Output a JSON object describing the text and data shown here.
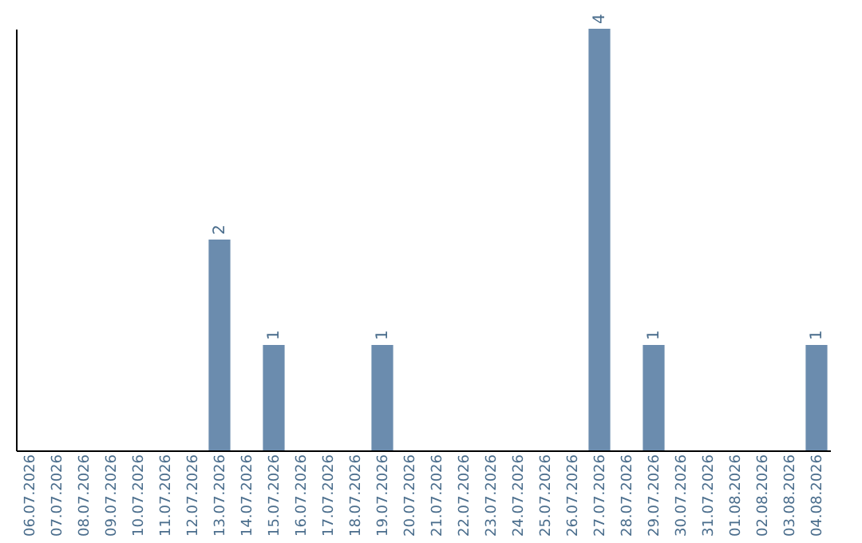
{
  "chart_data": {
    "type": "bar",
    "categories": [
      "06.07.2026",
      "07.07.2026",
      "08.07.2026",
      "09.07.2026",
      "10.07.2026",
      "11.07.2026",
      "12.07.2026",
      "13.07.2026",
      "14.07.2026",
      "15.07.2026",
      "16.07.2026",
      "17.07.2026",
      "18.07.2026",
      "19.07.2026",
      "20.07.2026",
      "21.07.2026",
      "22.07.2026",
      "23.07.2026",
      "24.07.2026",
      "25.07.2026",
      "26.07.2026",
      "27.07.2026",
      "28.07.2026",
      "29.07.2026",
      "30.07.2026",
      "31.07.2026",
      "01.08.2026",
      "02.08.2026",
      "03.08.2026",
      "04.08.2026"
    ],
    "values": [
      0,
      0,
      0,
      0,
      0,
      0,
      0,
      2,
      0,
      1,
      0,
      0,
      0,
      1,
      0,
      0,
      0,
      0,
      0,
      0,
      0,
      4,
      0,
      1,
      0,
      0,
      0,
      0,
      0,
      1
    ],
    "value_labels": [
      null,
      null,
      null,
      null,
      null,
      null,
      null,
      "2",
      null,
      "1",
      null,
      null,
      null,
      "1",
      null,
      null,
      null,
      null,
      null,
      null,
      null,
      "4",
      null,
      "1",
      null,
      null,
      null,
      null,
      null,
      "1"
    ],
    "color": "#6b8cae",
    "tick_labels": "x",
    "grid": false
  }
}
